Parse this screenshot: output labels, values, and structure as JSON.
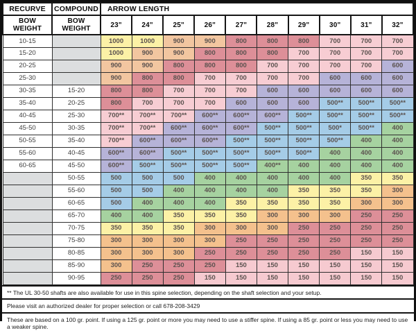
{
  "header": {
    "recurve_label": "RECURVE",
    "compound_label": "COMPOUND",
    "arrow_length_label": "ARROW LENGTH",
    "recurve_sub_label": "BOW WEIGHT",
    "compound_sub_label": "BOW WEIGHT"
  },
  "chart_data": {
    "type": "table",
    "arrow_lengths": [
      "23\"",
      "24\"",
      "25\"",
      "26\"",
      "27\"",
      "28\"",
      "29\"",
      "30\"",
      "31\"",
      "32\""
    ],
    "rows": [
      {
        "recurve": "10-15",
        "compound": "",
        "spines": [
          "1000",
          "1000",
          "900",
          "900",
          "800",
          "800",
          "800",
          "700",
          "700",
          "700"
        ]
      },
      {
        "recurve": "15-20",
        "compound": "",
        "spines": [
          "1000",
          "900",
          "900",
          "800",
          "800",
          "800",
          "700",
          "700",
          "700",
          "700"
        ]
      },
      {
        "recurve": "20-25",
        "compound": "",
        "spines": [
          "900",
          "900",
          "800",
          "800",
          "800",
          "700",
          "700",
          "700",
          "700",
          "600"
        ]
      },
      {
        "recurve": "25-30",
        "compound": "",
        "spines": [
          "900",
          "800",
          "800",
          "700",
          "700",
          "700",
          "700",
          "600",
          "600",
          "600"
        ]
      },
      {
        "recurve": "30-35",
        "compound": "15-20",
        "spines": [
          "800",
          "800",
          "700",
          "700",
          "700",
          "600",
          "600",
          "600",
          "600",
          "600"
        ]
      },
      {
        "recurve": "35-40",
        "compound": "20-25",
        "spines": [
          "800",
          "700",
          "700",
          "700",
          "600",
          "600",
          "600",
          "500**",
          "500**",
          "500**"
        ]
      },
      {
        "recurve": "40-45",
        "compound": "25-30",
        "spines": [
          "700**",
          "700**",
          "700**",
          "600**",
          "600**",
          "600**",
          "500**",
          "500**",
          "500**",
          "500**"
        ]
      },
      {
        "recurve": "45-50",
        "compound": "30-35",
        "spines": [
          "700**",
          "700**",
          "600**",
          "600**",
          "600**",
          "500**",
          "500**",
          "500*",
          "500**",
          "400"
        ]
      },
      {
        "recurve": "50-55",
        "compound": "35-40",
        "spines": [
          "700**",
          "600**",
          "600**",
          "600**",
          "500**",
          "500**",
          "500**",
          "500**",
          "400",
          "400"
        ]
      },
      {
        "recurve": "55-60",
        "compound": "40-45",
        "spines": [
          "600**",
          "600**",
          "500**",
          "500**",
          "500**",
          "500**",
          "500**",
          "400",
          "400",
          "400"
        ]
      },
      {
        "recurve": "60-65",
        "compound": "45-50",
        "spines": [
          "600**",
          "500**",
          "500**",
          "500**",
          "500**",
          "400**",
          "400",
          "400",
          "400",
          "400"
        ]
      },
      {
        "recurve": "",
        "compound": "50-55",
        "spines": [
          "500",
          "500",
          "500",
          "400",
          "400",
          "400",
          "400",
          "400",
          "350",
          "350"
        ]
      },
      {
        "recurve": "",
        "compound": "55-60",
        "spines": [
          "500",
          "500",
          "400",
          "400",
          "400",
          "400",
          "350",
          "350",
          "350",
          "300"
        ]
      },
      {
        "recurve": "",
        "compound": "60-65",
        "spines": [
          "500",
          "400",
          "400",
          "400",
          "350",
          "350",
          "350",
          "350",
          "300",
          "300"
        ]
      },
      {
        "recurve": "",
        "compound": "65-70",
        "spines": [
          "400",
          "400",
          "350",
          "350",
          "350",
          "300",
          "300",
          "300",
          "250",
          "250"
        ]
      },
      {
        "recurve": "",
        "compound": "70-75",
        "spines": [
          "350",
          "350",
          "350",
          "300",
          "300",
          "300",
          "250",
          "250",
          "250",
          "250"
        ]
      },
      {
        "recurve": "",
        "compound": "75-80",
        "spines": [
          "300",
          "300",
          "300",
          "300",
          "250",
          "250",
          "250",
          "250",
          "250",
          "250"
        ]
      },
      {
        "recurve": "",
        "compound": "80-85",
        "spines": [
          "300",
          "300",
          "300",
          "250",
          "250",
          "250",
          "250",
          "250",
          "150",
          "150"
        ]
      },
      {
        "recurve": "",
        "compound": "85-90",
        "spines": [
          "300",
          "250",
          "250",
          "250",
          "150",
          "150",
          "150",
          "150",
          "150",
          "150"
        ]
      },
      {
        "recurve": "",
        "compound": "90-95",
        "spines": [
          "250",
          "250",
          "250",
          "150",
          "150",
          "150",
          "150",
          "150",
          "150",
          "150"
        ]
      }
    ],
    "spine_colors": {
      "1000": "#fcf1a6",
      "900": "#f2c6a0",
      "800": "#dd8f98",
      "700": "#f7cdd3",
      "600": "#b6b3d8",
      "500": "#a5cce7",
      "400": "#a6d2a0",
      "350": "#fcf1a6",
      "300": "#f4c18d",
      "250": "#dd8f98",
      "150": "#f6cad0"
    },
    "empty_color": "#dcdedf"
  },
  "footnotes": [
    "** The UL 30-50 shafts are also available for use in this spine selection, depending on the shaft selection and your setup.",
    "Please visit an authorized dealer for proper selection or call 678-208-3429",
    "These are based on a 100 gr. point. If using a 125 gr. point or more you may need to use a stiffer spine. If using a 85 gr. point or less you may need to use a weaker spine."
  ]
}
